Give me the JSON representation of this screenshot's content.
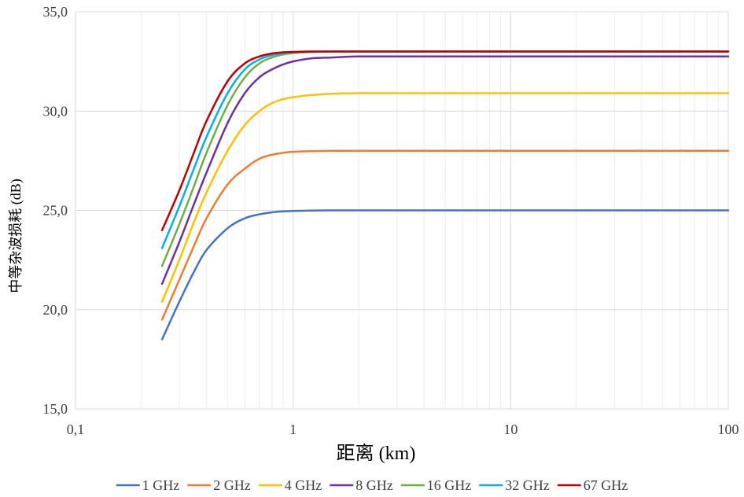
{
  "chart_data": {
    "type": "line",
    "title": "",
    "xlabel": "距离 (km)",
    "ylabel": "中等杂波损耗 (dB)",
    "x_scale": "log",
    "xlim": [
      0.1,
      100
    ],
    "ylim": [
      15,
      35
    ],
    "x_ticks": [
      0.1,
      1,
      10,
      100
    ],
    "x_tick_labels": [
      "0,1",
      "1",
      "10",
      "100"
    ],
    "y_ticks": [
      15,
      20,
      25,
      30,
      35
    ],
    "y_tick_labels": [
      "15,0",
      "20,0",
      "25,0",
      "30,0",
      "35,0"
    ],
    "grid": true,
    "legend_position": "bottom",
    "x": [
      0.25,
      0.3,
      0.35,
      0.4,
      0.5,
      0.6,
      0.7,
      0.8,
      0.9,
      1,
      1.2,
      1.5,
      2,
      3,
      5,
      10,
      20,
      50,
      100
    ],
    "series": [
      {
        "name": "1 GHz",
        "color": "#4472C4",
        "values": [
          18.5,
          20.4,
          21.9,
          23.0,
          24.1,
          24.6,
          24.8,
          24.9,
          24.95,
          24.97,
          24.99,
          25.0,
          25.0,
          25.0,
          25.0,
          25.0,
          25.0,
          25.0,
          25.0
        ]
      },
      {
        "name": "2 GHz",
        "color": "#ED7D31",
        "values": [
          19.5,
          21.5,
          23.2,
          24.6,
          26.3,
          27.1,
          27.6,
          27.8,
          27.9,
          27.95,
          27.98,
          28.0,
          28.0,
          28.0,
          28.0,
          28.0,
          28.0,
          28.0,
          28.0
        ]
      },
      {
        "name": "4 GHz",
        "color": "#FFC000",
        "values": [
          20.4,
          22.5,
          24.4,
          25.9,
          28.0,
          29.3,
          30.0,
          30.4,
          30.6,
          30.7,
          30.8,
          30.87,
          30.9,
          30.9,
          30.9,
          30.9,
          30.9,
          30.9,
          30.9
        ]
      },
      {
        "name": "8 GHz",
        "color": "#7030A0",
        "values": [
          21.3,
          23.4,
          25.3,
          26.9,
          29.4,
          30.9,
          31.7,
          32.1,
          32.35,
          32.5,
          32.65,
          32.7,
          32.75,
          32.75,
          32.75,
          32.75,
          32.75,
          32.75,
          32.75
        ]
      },
      {
        "name": "16 GHz",
        "color": "#70AD47",
        "values": [
          22.2,
          24.3,
          26.2,
          27.9,
          30.3,
          31.7,
          32.4,
          32.7,
          32.85,
          32.92,
          32.97,
          33.0,
          33.0,
          33.0,
          33.0,
          33.0,
          33.0,
          33.0,
          33.0
        ]
      },
      {
        "name": "32 GHz",
        "color": "#00B0F0",
        "values": [
          23.1,
          25.2,
          27.1,
          28.7,
          30.9,
          32.1,
          32.6,
          32.82,
          32.92,
          32.96,
          32.99,
          33.0,
          33.0,
          33.0,
          33.0,
          33.0,
          33.0,
          33.0,
          33.0
        ]
      },
      {
        "name": "67 GHz",
        "color": "#C00000",
        "values": [
          24.0,
          26.0,
          27.9,
          29.5,
          31.5,
          32.4,
          32.75,
          32.9,
          32.96,
          32.98,
          33.0,
          33.0,
          33.0,
          33.0,
          33.0,
          33.0,
          33.0,
          33.0,
          33.0
        ]
      }
    ]
  }
}
